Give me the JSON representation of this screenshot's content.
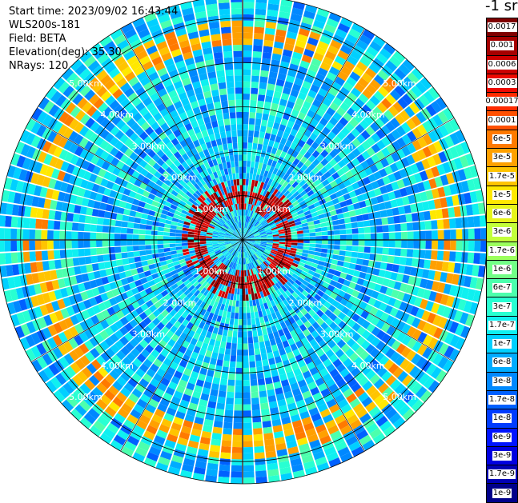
{
  "header": {
    "start_time": "Start time: 2023/09/02 16:43:44",
    "device": "WLS200s-181",
    "field": "Field: BETA",
    "elevation": "Elevation(deg): 35.30",
    "nrays": "NRays: 120"
  },
  "colorbar": {
    "unit": "-1 sr",
    "levels": [
      {
        "label": "0.0017",
        "color": "#7f0000"
      },
      {
        "label": "0.001",
        "color": "#a50000"
      },
      {
        "label": "0.0006",
        "color": "#cc0000"
      },
      {
        "label": "0.0003",
        "color": "#ee0a00"
      },
      {
        "label": "0.00017",
        "color": "#ff2a00"
      },
      {
        "label": "0.0001",
        "color": "#ff5000"
      },
      {
        "label": "6e-5",
        "color": "#ff7a00"
      },
      {
        "label": "3e-5",
        "color": "#ffa000"
      },
      {
        "label": "1.7e-5",
        "color": "#ffc400"
      },
      {
        "label": "1e-5",
        "color": "#ffe800"
      },
      {
        "label": "6e-6",
        "color": "#e6f51a"
      },
      {
        "label": "3e-6",
        "color": "#c2ff3a"
      },
      {
        "label": "1.7e-6",
        "color": "#9cff5e"
      },
      {
        "label": "1e-6",
        "color": "#72ff86"
      },
      {
        "label": "6e-7",
        "color": "#4cffad"
      },
      {
        "label": "3e-7",
        "color": "#28ffd2"
      },
      {
        "label": "1.7e-7",
        "color": "#0ff0f0"
      },
      {
        "label": "1e-7",
        "color": "#00d0ff"
      },
      {
        "label": "6e-8",
        "color": "#00acff"
      },
      {
        "label": "3e-8",
        "color": "#0088ff"
      },
      {
        "label": "1.7e-8",
        "color": "#0060ff"
      },
      {
        "label": "1e-8",
        "color": "#003cff"
      },
      {
        "label": "6e-9",
        "color": "#0014ff"
      },
      {
        "label": "3e-9",
        "color": "#0000e0"
      },
      {
        "label": "1.7e-9",
        "color": "#0000b4"
      },
      {
        "label": "1e-9",
        "color": "#00008a"
      }
    ]
  },
  "chart_data": {
    "type": "heatmap",
    "projection": "polar (PPI scan)",
    "n_rays": 120,
    "max_range_km": 5.5,
    "range_rings_km": [
      1,
      2,
      3,
      4,
      5
    ],
    "ring_labels": [
      "1.00km",
      "2.00km",
      "3.00km",
      "4.00km",
      "5.00km"
    ],
    "features": [
      {
        "name": "inner ring",
        "range_km": 1.0,
        "level": "0.0017"
      },
      {
        "name": "outer ring",
        "range_km": 4.6,
        "level": "6e-5"
      }
    ],
    "background_level": "1e-7"
  }
}
